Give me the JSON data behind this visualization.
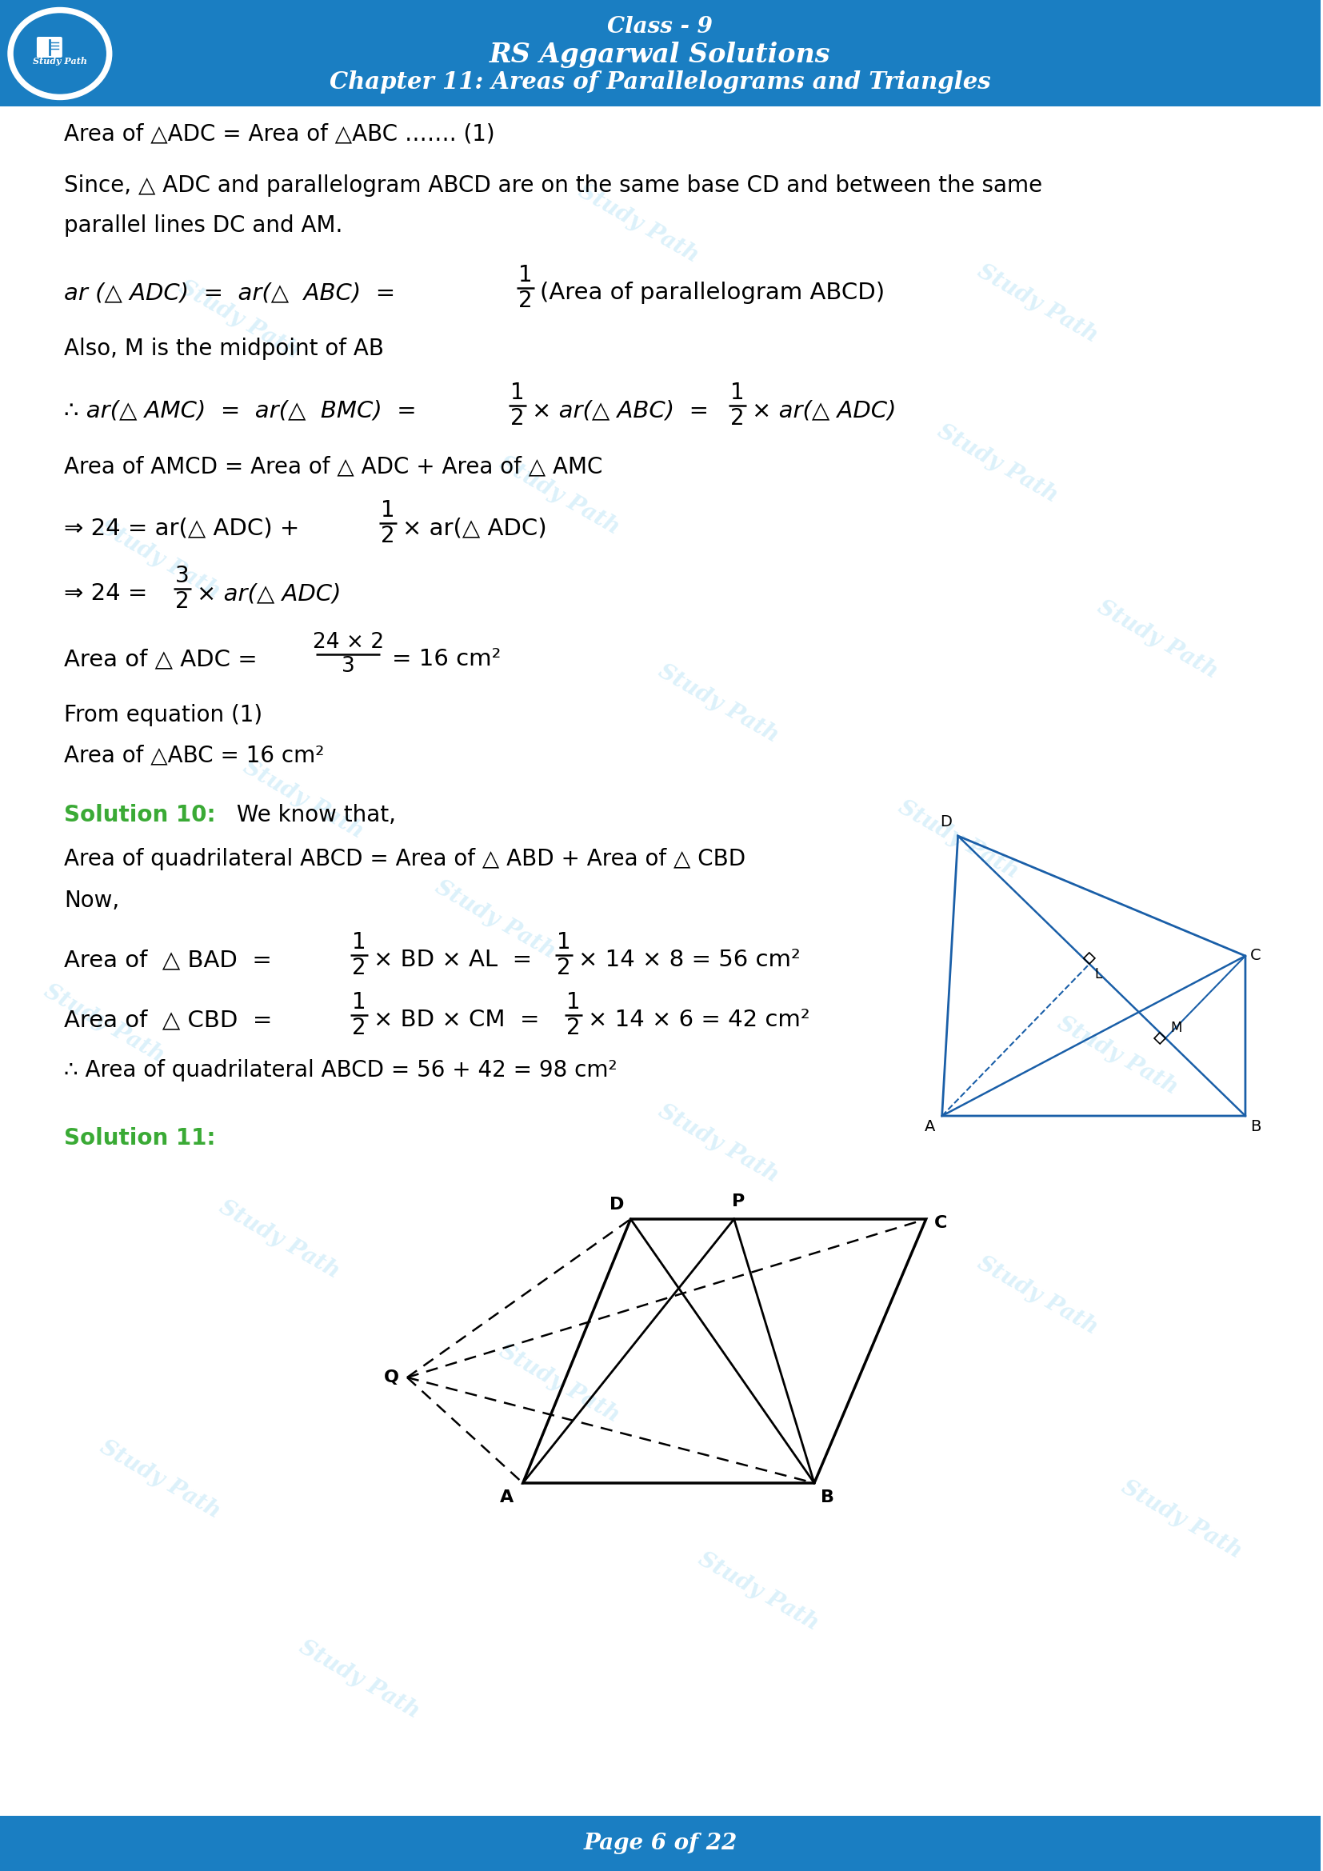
{
  "header_bg": "#1a7ec2",
  "footer_bg": "#1a7ec2",
  "page_bg": "#ffffff",
  "header_text_color": "#ffffff",
  "body_text_color": "#000000",
  "solution_color": "#3aaa35",
  "diagram_color": "#1a5fa8",
  "watermark_color": "#c5e8f8",
  "title_line1": "Class - 9",
  "title_line2": "RS Aggarwal Solutions",
  "title_line3": "Chapter 11: Areas of Parallelograms and Triangles",
  "footer_text": "Page 6 of 22"
}
